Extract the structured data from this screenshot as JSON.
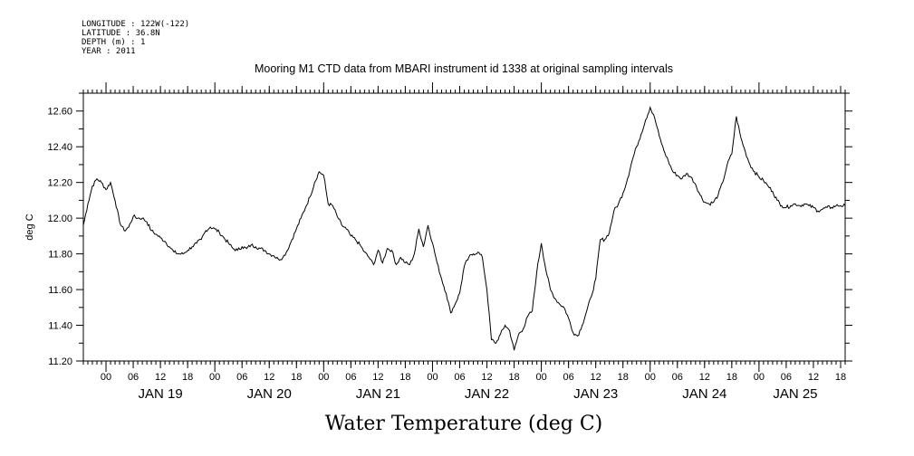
{
  "header": {
    "longitude": "LONGITUDE : 122W(-122)",
    "latitude": "LATITUDE : 36.8N",
    "depth": "DEPTH (m) : 1",
    "year": "YEAR : 2011"
  },
  "colors": {
    "line": "#000000",
    "background": "#ffffff"
  },
  "chart_data": {
    "type": "line",
    "title": "Mooring M1 CTD data from MBARI instrument id 1338 at original sampling intervals",
    "xlabel": "Water Temperature (deg C)",
    "ylabel": "deg C",
    "x_unit": "hours",
    "xlim": [
      "2011-01-18T19:00",
      "2011-01-25T19:00"
    ],
    "ylim": [
      11.2,
      12.7
    ],
    "y_ticks": [
      "11.20",
      "11.40",
      "11.60",
      "11.80",
      "12.00",
      "12.20",
      "12.40",
      "12.60"
    ],
    "x_hour_ticks": [
      {
        "label": "00",
        "t": "2011-01-19T00:00"
      },
      {
        "label": "06",
        "t": "2011-01-19T06:00"
      },
      {
        "label": "12",
        "t": "2011-01-19T12:00"
      },
      {
        "label": "18",
        "t": "2011-01-19T18:00"
      },
      {
        "label": "00",
        "t": "2011-01-20T00:00"
      },
      {
        "label": "06",
        "t": "2011-01-20T06:00"
      },
      {
        "label": "12",
        "t": "2011-01-20T12:00"
      },
      {
        "label": "18",
        "t": "2011-01-20T18:00"
      },
      {
        "label": "00",
        "t": "2011-01-21T00:00"
      },
      {
        "label": "06",
        "t": "2011-01-21T06:00"
      },
      {
        "label": "12",
        "t": "2011-01-21T12:00"
      },
      {
        "label": "18",
        "t": "2011-01-21T18:00"
      },
      {
        "label": "00",
        "t": "2011-01-22T00:00"
      },
      {
        "label": "06",
        "t": "2011-01-22T06:00"
      },
      {
        "label": "12",
        "t": "2011-01-22T12:00"
      },
      {
        "label": "18",
        "t": "2011-01-22T18:00"
      },
      {
        "label": "00",
        "t": "2011-01-23T00:00"
      },
      {
        "label": "06",
        "t": "2011-01-23T06:00"
      },
      {
        "label": "12",
        "t": "2011-01-23T12:00"
      },
      {
        "label": "18",
        "t": "2011-01-23T18:00"
      },
      {
        "label": "00",
        "t": "2011-01-24T00:00"
      },
      {
        "label": "06",
        "t": "2011-01-24T06:00"
      },
      {
        "label": "12",
        "t": "2011-01-24T12:00"
      },
      {
        "label": "18",
        "t": "2011-01-24T18:00"
      },
      {
        "label": "00",
        "t": "2011-01-25T00:00"
      },
      {
        "label": "06",
        "t": "2011-01-25T06:00"
      },
      {
        "label": "12",
        "t": "2011-01-25T12:00"
      },
      {
        "label": "18",
        "t": "2011-01-25T18:00"
      }
    ],
    "day_labels": [
      {
        "label": "JAN 19",
        "t": "2011-01-19T12:00"
      },
      {
        "label": "JAN 20",
        "t": "2011-01-20T12:00"
      },
      {
        "label": "JAN 21",
        "t": "2011-01-21T12:00"
      },
      {
        "label": "JAN 22",
        "t": "2011-01-22T12:00"
      },
      {
        "label": "JAN 23",
        "t": "2011-01-23T12:00"
      },
      {
        "label": "JAN 24",
        "t": "2011-01-24T12:00"
      },
      {
        "label": "JAN 25",
        "t": "2011-01-25T08:00"
      }
    ],
    "series": [
      {
        "values": [
          [
            "2011-01-18T19:00",
            11.96
          ],
          [
            "2011-01-18T20:00",
            12.08
          ],
          [
            "2011-01-18T21:00",
            12.18
          ],
          [
            "2011-01-18T22:00",
            12.22
          ],
          [
            "2011-01-18T23:00",
            12.2
          ],
          [
            "2011-01-19T00:00",
            12.16
          ],
          [
            "2011-01-19T01:00",
            12.2
          ],
          [
            "2011-01-19T02:00",
            12.1
          ],
          [
            "2011-01-19T03:00",
            11.98
          ],
          [
            "2011-01-19T04:00",
            11.93
          ],
          [
            "2011-01-19T05:00",
            11.95
          ],
          [
            "2011-01-19T06:00",
            12.01
          ],
          [
            "2011-01-19T07:00",
            12.0
          ],
          [
            "2011-01-19T08:00",
            12.0
          ],
          [
            "2011-01-19T09:00",
            11.98
          ],
          [
            "2011-01-19T10:00",
            11.93
          ],
          [
            "2011-01-19T11:00",
            11.91
          ],
          [
            "2011-01-19T12:00",
            11.89
          ],
          [
            "2011-01-19T13:00",
            11.87
          ],
          [
            "2011-01-19T14:00",
            11.84
          ],
          [
            "2011-01-19T15:00",
            11.81
          ],
          [
            "2011-01-19T16:00",
            11.8
          ],
          [
            "2011-01-19T17:00",
            11.8
          ],
          [
            "2011-01-19T18:00",
            11.82
          ],
          [
            "2011-01-19T19:00",
            11.84
          ],
          [
            "2011-01-19T20:00",
            11.86
          ],
          [
            "2011-01-19T21:00",
            11.88
          ],
          [
            "2011-01-19T22:00",
            11.93
          ],
          [
            "2011-01-19T23:00",
            11.95
          ],
          [
            "2011-01-20T00:00",
            11.94
          ],
          [
            "2011-01-20T01:00",
            11.92
          ],
          [
            "2011-01-20T02:00",
            11.89
          ],
          [
            "2011-01-20T03:00",
            11.86
          ],
          [
            "2011-01-20T04:00",
            11.83
          ],
          [
            "2011-01-20T05:00",
            11.82
          ],
          [
            "2011-01-20T06:00",
            11.84
          ],
          [
            "2011-01-20T07:00",
            11.83
          ],
          [
            "2011-01-20T08:00",
            11.85
          ],
          [
            "2011-01-20T09:00",
            11.84
          ],
          [
            "2011-01-20T10:00",
            11.83
          ],
          [
            "2011-01-20T11:00",
            11.82
          ],
          [
            "2011-01-20T12:00",
            11.8
          ],
          [
            "2011-01-20T13:00",
            11.79
          ],
          [
            "2011-01-20T14:00",
            11.77
          ],
          [
            "2011-01-20T15:00",
            11.78
          ],
          [
            "2011-01-20T16:00",
            11.82
          ],
          [
            "2011-01-20T17:00",
            11.88
          ],
          [
            "2011-01-20T18:00",
            11.94
          ],
          [
            "2011-01-20T19:00",
            12.0
          ],
          [
            "2011-01-20T20:00",
            12.06
          ],
          [
            "2011-01-20T21:00",
            12.12
          ],
          [
            "2011-01-20T22:00",
            12.2
          ],
          [
            "2011-01-20T23:00",
            12.26
          ],
          [
            "2011-01-21T00:00",
            12.24
          ],
          [
            "2011-01-21T01:00",
            12.08
          ],
          [
            "2011-01-21T02:00",
            12.07
          ],
          [
            "2011-01-21T03:00",
            12.01
          ],
          [
            "2011-01-21T04:00",
            11.96
          ],
          [
            "2011-01-21T05:00",
            11.94
          ],
          [
            "2011-01-21T06:00",
            11.9
          ],
          [
            "2011-01-21T07:00",
            11.88
          ],
          [
            "2011-01-21T08:00",
            11.85
          ],
          [
            "2011-01-21T09:00",
            11.81
          ],
          [
            "2011-01-21T10:00",
            11.78
          ],
          [
            "2011-01-21T11:00",
            11.74
          ],
          [
            "2011-01-21T12:00",
            11.82
          ],
          [
            "2011-01-21T13:00",
            11.75
          ],
          [
            "2011-01-21T14:00",
            11.83
          ],
          [
            "2011-01-21T15:00",
            11.82
          ],
          [
            "2011-01-21T16:00",
            11.74
          ],
          [
            "2011-01-21T17:00",
            11.78
          ],
          [
            "2011-01-21T18:00",
            11.75
          ],
          [
            "2011-01-21T19:00",
            11.74
          ],
          [
            "2011-01-21T20:00",
            11.8
          ],
          [
            "2011-01-21T21:00",
            11.94
          ],
          [
            "2011-01-21T22:00",
            11.84
          ],
          [
            "2011-01-21T23:00",
            11.96
          ],
          [
            "2011-01-22T00:00",
            11.86
          ],
          [
            "2011-01-22T01:00",
            11.75
          ],
          [
            "2011-01-22T02:00",
            11.66
          ],
          [
            "2011-01-22T03:00",
            11.58
          ],
          [
            "2011-01-22T04:00",
            11.47
          ],
          [
            "2011-01-22T05:00",
            11.52
          ],
          [
            "2011-01-22T06:00",
            11.58
          ],
          [
            "2011-01-22T07:00",
            11.73
          ],
          [
            "2011-01-22T08:00",
            11.78
          ],
          [
            "2011-01-22T09:00",
            11.8
          ],
          [
            "2011-01-22T10:00",
            11.81
          ],
          [
            "2011-01-22T11:00",
            11.78
          ],
          [
            "2011-01-22T12:00",
            11.6
          ],
          [
            "2011-01-22T13:00",
            11.32
          ],
          [
            "2011-01-22T14:00",
            11.3
          ],
          [
            "2011-01-22T15:00",
            11.35
          ],
          [
            "2011-01-22T16:00",
            11.4
          ],
          [
            "2011-01-22T17:00",
            11.37
          ],
          [
            "2011-01-22T18:00",
            11.26
          ],
          [
            "2011-01-22T19:00",
            11.35
          ],
          [
            "2011-01-22T20:00",
            11.38
          ],
          [
            "2011-01-22T21:00",
            11.45
          ],
          [
            "2011-01-22T22:00",
            11.48
          ],
          [
            "2011-01-22T23:00",
            11.7
          ],
          [
            "2011-01-23T00:00",
            11.86
          ],
          [
            "2011-01-23T01:00",
            11.71
          ],
          [
            "2011-01-23T02:00",
            11.6
          ],
          [
            "2011-01-23T03:00",
            11.55
          ],
          [
            "2011-01-23T04:00",
            11.52
          ],
          [
            "2011-01-23T05:00",
            11.5
          ],
          [
            "2011-01-23T06:00",
            11.44
          ],
          [
            "2011-01-23T07:00",
            11.36
          ],
          [
            "2011-01-23T08:00",
            11.34
          ],
          [
            "2011-01-23T09:00",
            11.4
          ],
          [
            "2011-01-23T10:00",
            11.48
          ],
          [
            "2011-01-23T11:00",
            11.56
          ],
          [
            "2011-01-23T12:00",
            11.66
          ],
          [
            "2011-01-23T13:00",
            11.88
          ],
          [
            "2011-01-23T14:00",
            11.88
          ],
          [
            "2011-01-23T15:00",
            11.92
          ],
          [
            "2011-01-23T16:00",
            12.04
          ],
          [
            "2011-01-23T17:00",
            12.08
          ],
          [
            "2011-01-23T18:00",
            12.14
          ],
          [
            "2011-01-23T19:00",
            12.22
          ],
          [
            "2011-01-23T20:00",
            12.32
          ],
          [
            "2011-01-23T21:00",
            12.4
          ],
          [
            "2011-01-23T22:00",
            12.47
          ],
          [
            "2011-01-23T23:00",
            12.55
          ],
          [
            "2011-01-24T00:00",
            12.62
          ],
          [
            "2011-01-24T01:00",
            12.56
          ],
          [
            "2011-01-24T02:00",
            12.46
          ],
          [
            "2011-01-24T03:00",
            12.38
          ],
          [
            "2011-01-24T04:00",
            12.32
          ],
          [
            "2011-01-24T05:00",
            12.26
          ],
          [
            "2011-01-24T06:00",
            12.24
          ],
          [
            "2011-01-24T07:00",
            12.22
          ],
          [
            "2011-01-24T08:00",
            12.25
          ],
          [
            "2011-01-24T09:00",
            12.23
          ],
          [
            "2011-01-24T10:00",
            12.19
          ],
          [
            "2011-01-24T11:00",
            12.13
          ],
          [
            "2011-01-24T12:00",
            12.09
          ],
          [
            "2011-01-24T13:00",
            12.08
          ],
          [
            "2011-01-24T14:00",
            12.09
          ],
          [
            "2011-01-24T15:00",
            12.13
          ],
          [
            "2011-01-24T16:00",
            12.2
          ],
          [
            "2011-01-24T17:00",
            12.3
          ],
          [
            "2011-01-24T18:00",
            12.36
          ],
          [
            "2011-01-24T19:00",
            12.57
          ],
          [
            "2011-01-24T20:00",
            12.45
          ],
          [
            "2011-01-24T21:00",
            12.37
          ],
          [
            "2011-01-24T22:00",
            12.3
          ],
          [
            "2011-01-24T23:00",
            12.26
          ],
          [
            "2011-01-25T00:00",
            12.23
          ],
          [
            "2011-01-25T01:00",
            12.21
          ],
          [
            "2011-01-25T02:00",
            12.18
          ],
          [
            "2011-01-25T03:00",
            12.15
          ],
          [
            "2011-01-25T04:00",
            12.1
          ],
          [
            "2011-01-25T05:00",
            12.07
          ],
          [
            "2011-01-25T06:00",
            12.06
          ],
          [
            "2011-01-25T07:00",
            12.07
          ],
          [
            "2011-01-25T08:00",
            12.08
          ],
          [
            "2011-01-25T09:00",
            12.07
          ],
          [
            "2011-01-25T10:00",
            12.08
          ],
          [
            "2011-01-25T11:00",
            12.07
          ],
          [
            "2011-01-25T12:00",
            12.06
          ],
          [
            "2011-01-25T13:00",
            12.04
          ],
          [
            "2011-01-25T14:00",
            12.05
          ],
          [
            "2011-01-25T15:00",
            12.06
          ],
          [
            "2011-01-25T16:00",
            12.06
          ],
          [
            "2011-01-25T17:00",
            12.07
          ],
          [
            "2011-01-25T18:00",
            12.07
          ],
          [
            "2011-01-25T19:00",
            12.07
          ]
        ]
      }
    ],
    "grid": false,
    "legend": "none"
  }
}
